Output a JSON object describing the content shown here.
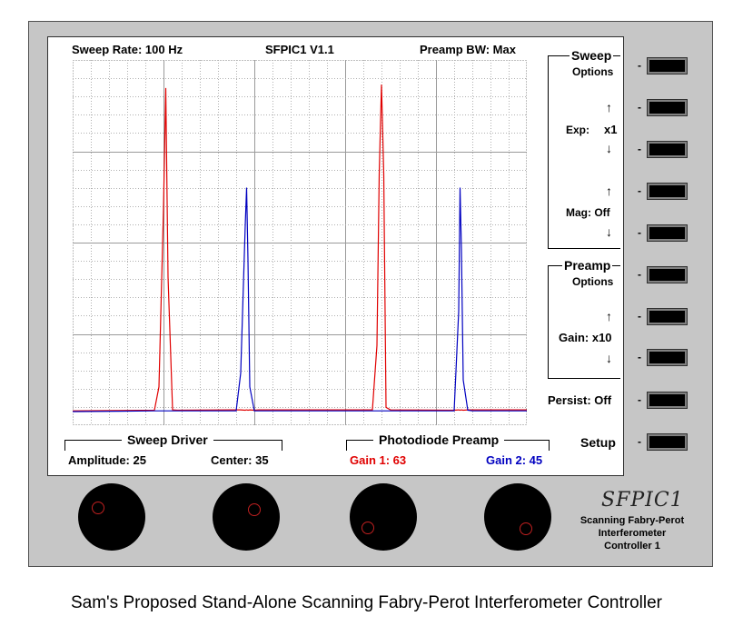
{
  "header": {
    "sweep_rate": "Sweep Rate: 100 Hz",
    "title": "SFPIC1 V1.1",
    "preamp_bw": "Preamp BW: Max"
  },
  "sweep_options": {
    "heading": "Sweep",
    "sub": "Options",
    "exp_label": "Exp:",
    "exp_value": "x1",
    "mag_label": "Mag: Off"
  },
  "preamp_options": {
    "heading": "Preamp",
    "sub": "Options",
    "gain_label": "Gain: x10"
  },
  "persist_label": "Persist: Off",
  "setup_label": "Setup",
  "sweep_driver": {
    "heading": "Sweep Driver",
    "amplitude": "Amplitude: 25",
    "center": "Center: 35"
  },
  "photodiode_preamp": {
    "heading": "Photodiode Preamp",
    "gain1": "Gain 1: 63",
    "gain2": "Gain 2: 45"
  },
  "brand": {
    "logo": "SFPIC1",
    "line1": "Scanning Fabry-Perot",
    "line2": "Interferometer",
    "line3": "Controller 1"
  },
  "arrows": {
    "up": "↑",
    "down": "↓"
  },
  "softkey_marker": "-",
  "caption": "Sam's Proposed Stand-Alone Scanning Fabry-Perot Interferometer Controller",
  "colors": {
    "channel1": "#e00000",
    "channel2": "#0000c0"
  },
  "chart_data": {
    "type": "line",
    "x": [
      0,
      10,
      18,
      19,
      20,
      20.5,
      20.5,
      21,
      22,
      23,
      36,
      37,
      38,
      38.3,
      38.6,
      39,
      40,
      41,
      66,
      67,
      67.5,
      68,
      68.5,
      69,
      70,
      84,
      85,
      85.3,
      85.6,
      86,
      87,
      88,
      100
    ],
    "series": [
      {
        "color": "#e00000",
        "values": [
          1,
          1.1,
          1.2,
          8,
          60,
          95,
          95,
          40,
          1.3,
          1.2,
          1.3,
          1.3,
          1.2,
          1.3,
          1.2,
          1.3,
          1.2,
          1.3,
          1.3,
          20,
          70,
          96,
          70,
          2,
          1.3,
          1.2,
          1.3,
          1.2,
          1.3,
          1.2,
          1.3,
          1.3,
          1.3
        ]
      },
      {
        "color": "#0000c0",
        "values": [
          0.8,
          0.9,
          1,
          1,
          1,
          1,
          1,
          1,
          1,
          1,
          1,
          12,
          55,
          66,
          45,
          8,
          1,
          1,
          1,
          1,
          1,
          1,
          1,
          1,
          1,
          1,
          30,
          66,
          48,
          10,
          1.2,
          1,
          1
        ]
      }
    ],
    "xlim": [
      0,
      100
    ],
    "ylim": [
      0,
      100
    ],
    "grid": true
  }
}
